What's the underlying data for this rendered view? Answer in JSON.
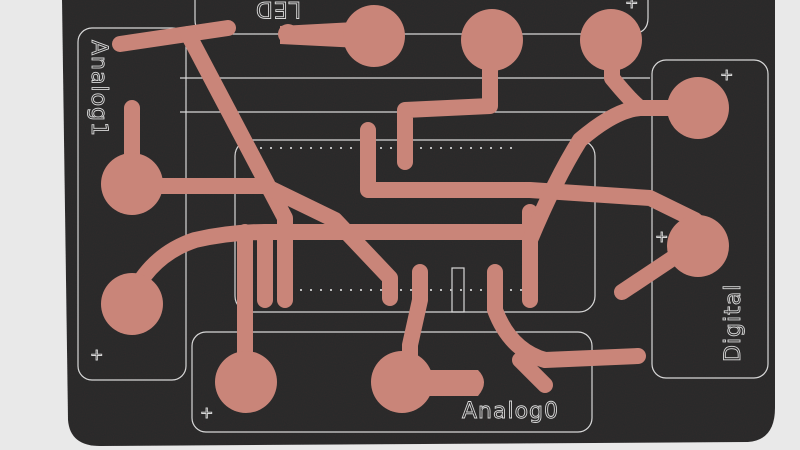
{
  "board": {
    "labels": {
      "led": "LED",
      "analog1": "Analog1",
      "analog0": "Analog0",
      "digital": "Digital"
    },
    "plus_markers": [
      "+",
      "+",
      "+",
      "+",
      "+"
    ]
  },
  "colors": {
    "background": "#e9e9e9",
    "board": "#2e2c2d",
    "copper": "#c98579",
    "silkscreen": "#d8d8d8"
  }
}
